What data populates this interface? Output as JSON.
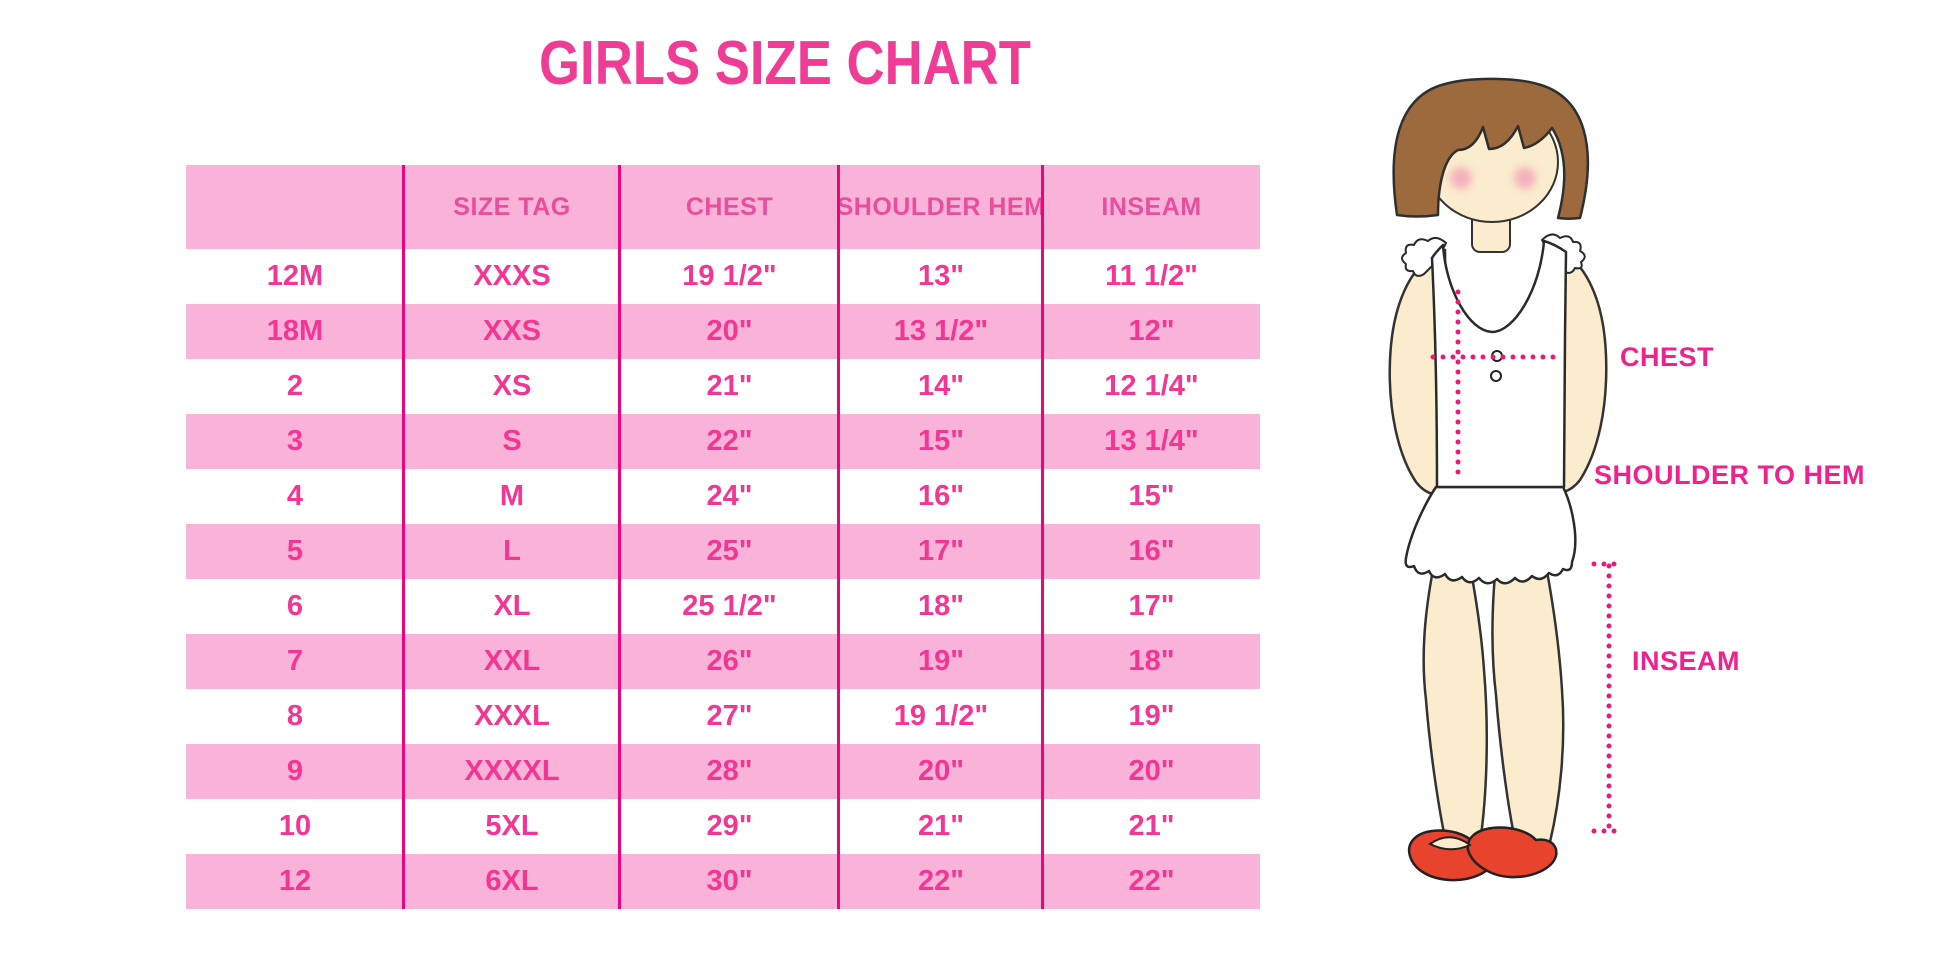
{
  "title": "GIRLS SIZE CHART",
  "chart_data": {
    "type": "table",
    "title": "GIRLS SIZE CHART",
    "columns": [
      "",
      "SIZE TAG",
      "CHEST",
      "SHOULDER HEM",
      "INSEAM"
    ],
    "rows": [
      [
        "12M",
        "XXXS",
        "19 1/2\"",
        "13\"",
        "11 1/2\""
      ],
      [
        "18M",
        "XXS",
        "20\"",
        "13 1/2\"",
        "12\""
      ],
      [
        "2",
        "XS",
        "21\"",
        "14\"",
        "12 1/4\""
      ],
      [
        "3",
        "S",
        "22\"",
        "15\"",
        "13 1/4\""
      ],
      [
        "4",
        "M",
        "24\"",
        "16\"",
        "15\""
      ],
      [
        "5",
        "L",
        "25\"",
        "17\"",
        "16\""
      ],
      [
        "6",
        "XL",
        "25 1/2\"",
        "18\"",
        "17\""
      ],
      [
        "7",
        "XXL",
        "26\"",
        "19\"",
        "18\""
      ],
      [
        "8",
        "XXXL",
        "27\"",
        "19 1/2\"",
        "19\""
      ],
      [
        "9",
        "XXXXL",
        "28\"",
        "20\"",
        "20\""
      ],
      [
        "10",
        "5XL",
        "29\"",
        "21\"",
        "21\""
      ],
      [
        "12",
        "6XL",
        "30\"",
        "22\"",
        "22\""
      ]
    ],
    "layout_hints": {
      "striped": true,
      "stripe_color": "#fab3d8",
      "grid": "vertical-only"
    }
  },
  "figure": {
    "chest_label": "CHEST",
    "shoulder_to_hem_label": "SHOULDER TO HEM",
    "inseam_label": "INSEAM"
  },
  "colors": {
    "title_pink": "#ef3d95",
    "row_pink": "#fab3d8",
    "divider_pink": "#e6077e",
    "value_text_pink": "#f33693",
    "header_text_pink": "#e94d9d",
    "dotted_line_pink": "#ec1878",
    "hair_brown": "#9c6a3c",
    "skin": "#faeccc",
    "shoe_red": "#e8432c",
    "blush": "#f2a3b8"
  }
}
